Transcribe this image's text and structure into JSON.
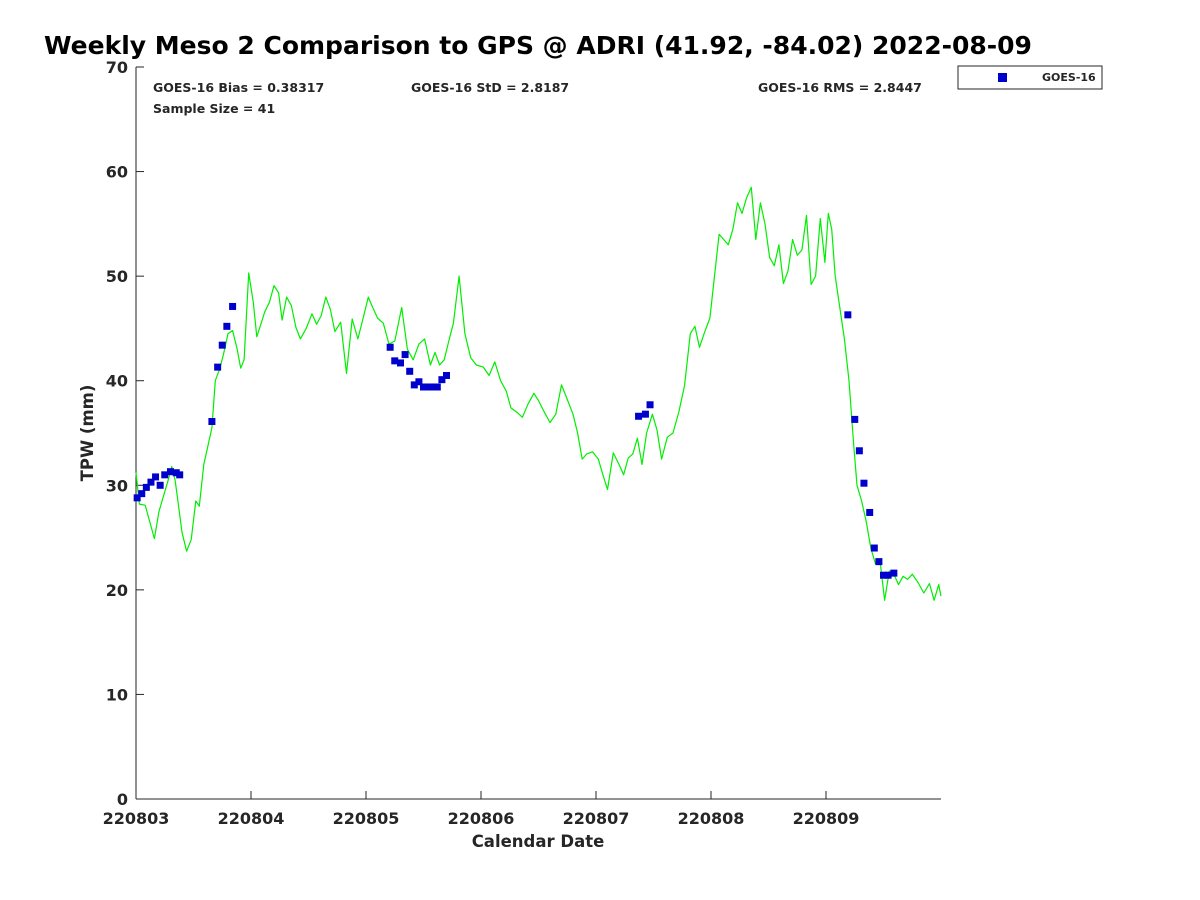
{
  "chart_data": {
    "type": "scatter",
    "title": "Weekly Meso 2 Comparison to GPS @ ADRI (41.92, -84.02) 2022-08-09",
    "xlabel": "Calendar Date",
    "ylabel": "TPW (mm)",
    "xlim": [
      0,
      7
    ],
    "ylim": [
      0,
      70
    ],
    "x_ticks": [
      {
        "label": "220803",
        "value": 0
      },
      {
        "label": "220804",
        "value": 1
      },
      {
        "label": "220805",
        "value": 2
      },
      {
        "label": "220806",
        "value": 3
      },
      {
        "label": "220807",
        "value": 4
      },
      {
        "label": "220808",
        "value": 5
      },
      {
        "label": "220809",
        "value": 6
      }
    ],
    "y_ticks": [
      "0",
      "10",
      "20",
      "30",
      "40",
      "50",
      "60",
      "70"
    ],
    "stats": {
      "bias": "GOES-16 Bias = 0.38317",
      "std": "GOES-16 StD = 2.8187",
      "rms": "GOES-16 RMS = 2.8447",
      "sample": "Sample Size = 41"
    },
    "legend": {
      "position": "top-right",
      "entries": [
        "GOES-16"
      ]
    },
    "colors": {
      "goes": "#0000cc",
      "gps": "#00ee00",
      "axis": "#262626"
    },
    "series": [
      {
        "name": "GOES-16",
        "marker": "square",
        "points": [
          [
            0.01,
            28.8
          ],
          [
            0.05,
            29.2
          ],
          [
            0.09,
            29.8
          ],
          [
            0.13,
            30.3
          ],
          [
            0.17,
            30.8
          ],
          [
            0.21,
            30.0
          ],
          [
            0.25,
            31.0
          ],
          [
            0.3,
            31.3
          ],
          [
            0.35,
            31.2
          ],
          [
            0.38,
            31.0
          ],
          [
            0.66,
            36.1
          ],
          [
            0.71,
            41.3
          ],
          [
            0.75,
            43.4
          ],
          [
            0.79,
            45.2
          ],
          [
            0.84,
            47.1
          ],
          [
            2.21,
            43.2
          ],
          [
            2.25,
            41.9
          ],
          [
            2.3,
            41.7
          ],
          [
            2.34,
            42.5
          ],
          [
            2.38,
            40.9
          ],
          [
            2.42,
            39.6
          ],
          [
            2.46,
            39.9
          ],
          [
            2.5,
            39.4
          ],
          [
            2.54,
            39.4
          ],
          [
            2.58,
            39.4
          ],
          [
            2.62,
            39.4
          ],
          [
            2.66,
            40.1
          ],
          [
            2.7,
            40.5
          ],
          [
            4.37,
            36.6
          ],
          [
            4.43,
            36.8
          ],
          [
            4.47,
            37.7
          ],
          [
            6.19,
            46.3
          ],
          [
            6.25,
            36.3
          ],
          [
            6.29,
            33.3
          ],
          [
            6.33,
            30.2
          ],
          [
            6.38,
            27.4
          ],
          [
            6.42,
            24.0
          ],
          [
            6.46,
            22.7
          ],
          [
            6.5,
            21.4
          ],
          [
            6.54,
            21.4
          ],
          [
            6.59,
            21.6
          ]
        ]
      },
      {
        "name": "GPS",
        "line": true,
        "points": [
          [
            0.0,
            31.2
          ],
          [
            0.03,
            28.2
          ],
          [
            0.08,
            28.1
          ],
          [
            0.12,
            26.5
          ],
          [
            0.16,
            24.9
          ],
          [
            0.2,
            27.5
          ],
          [
            0.24,
            29.0
          ],
          [
            0.28,
            30.5
          ],
          [
            0.31,
            31.8
          ],
          [
            0.34,
            30.5
          ],
          [
            0.37,
            28.0
          ],
          [
            0.4,
            25.5
          ],
          [
            0.44,
            23.7
          ],
          [
            0.48,
            24.8
          ],
          [
            0.52,
            28.5
          ],
          [
            0.55,
            28.0
          ],
          [
            0.59,
            32.0
          ],
          [
            0.62,
            33.5
          ],
          [
            0.66,
            35.5
          ],
          [
            0.69,
            40.0
          ],
          [
            0.73,
            41.2
          ],
          [
            0.76,
            42.5
          ],
          [
            0.8,
            44.5
          ],
          [
            0.84,
            44.8
          ],
          [
            0.88,
            43.0
          ],
          [
            0.91,
            41.2
          ],
          [
            0.94,
            42.0
          ],
          [
            0.98,
            50.3
          ],
          [
            1.02,
            47.5
          ],
          [
            1.05,
            44.2
          ],
          [
            1.08,
            45.2
          ],
          [
            1.12,
            46.6
          ],
          [
            1.16,
            47.5
          ],
          [
            1.2,
            49.1
          ],
          [
            1.24,
            48.4
          ],
          [
            1.27,
            45.8
          ],
          [
            1.31,
            48.0
          ],
          [
            1.35,
            47.2
          ],
          [
            1.39,
            45.1
          ],
          [
            1.43,
            44.0
          ],
          [
            1.48,
            45.0
          ],
          [
            1.53,
            46.4
          ],
          [
            1.57,
            45.4
          ],
          [
            1.61,
            46.2
          ],
          [
            1.65,
            48.0
          ],
          [
            1.69,
            46.8
          ],
          [
            1.73,
            44.7
          ],
          [
            1.78,
            45.6
          ],
          [
            1.83,
            40.7
          ],
          [
            1.88,
            45.9
          ],
          [
            1.93,
            44.0
          ],
          [
            1.98,
            46.2
          ],
          [
            2.02,
            48.0
          ],
          [
            2.05,
            47.2
          ],
          [
            2.1,
            46.0
          ],
          [
            2.15,
            45.5
          ],
          [
            2.2,
            43.5
          ],
          [
            2.25,
            43.8
          ],
          [
            2.31,
            47.0
          ],
          [
            2.36,
            43.0
          ],
          [
            2.41,
            42.0
          ],
          [
            2.46,
            43.5
          ],
          [
            2.51,
            44.0
          ],
          [
            2.56,
            41.5
          ],
          [
            2.6,
            42.7
          ],
          [
            2.64,
            41.5
          ],
          [
            2.68,
            42.0
          ],
          [
            2.72,
            43.8
          ],
          [
            2.76,
            45.5
          ],
          [
            2.81,
            50.0
          ],
          [
            2.86,
            44.5
          ],
          [
            2.91,
            42.2
          ],
          [
            2.96,
            41.5
          ],
          [
            3.02,
            41.3
          ],
          [
            3.07,
            40.5
          ],
          [
            3.12,
            41.8
          ],
          [
            3.17,
            40.0
          ],
          [
            3.22,
            39.0
          ],
          [
            3.26,
            37.4
          ],
          [
            3.31,
            37.0
          ],
          [
            3.36,
            36.5
          ],
          [
            3.41,
            37.8
          ],
          [
            3.46,
            38.8
          ],
          [
            3.5,
            38.1
          ],
          [
            3.55,
            37.0
          ],
          [
            3.6,
            36.0
          ],
          [
            3.65,
            36.8
          ],
          [
            3.7,
            39.6
          ],
          [
            3.75,
            38.2
          ],
          [
            3.8,
            36.8
          ],
          [
            3.84,
            35.0
          ],
          [
            3.88,
            32.5
          ],
          [
            3.92,
            33.0
          ],
          [
            3.97,
            33.2
          ],
          [
            4.02,
            32.5
          ],
          [
            4.06,
            31.0
          ],
          [
            4.1,
            29.6
          ],
          [
            4.15,
            33.1
          ],
          [
            4.2,
            32.0
          ],
          [
            4.24,
            31.0
          ],
          [
            4.28,
            32.6
          ],
          [
            4.32,
            33.0
          ],
          [
            4.36,
            34.5
          ],
          [
            4.4,
            32.0
          ],
          [
            4.44,
            35.0
          ],
          [
            4.49,
            36.8
          ],
          [
            4.53,
            35.3
          ],
          [
            4.57,
            32.5
          ],
          [
            4.62,
            34.6
          ],
          [
            4.67,
            35.0
          ],
          [
            4.72,
            37.0
          ],
          [
            4.77,
            39.5
          ],
          [
            4.82,
            44.5
          ],
          [
            4.86,
            45.2
          ],
          [
            4.9,
            43.2
          ],
          [
            4.94,
            44.5
          ],
          [
            4.99,
            46.0
          ],
          [
            5.03,
            50.0
          ],
          [
            5.07,
            54.0
          ],
          [
            5.11,
            53.5
          ],
          [
            5.15,
            53.0
          ],
          [
            5.19,
            54.5
          ],
          [
            5.23,
            57.0
          ],
          [
            5.27,
            56.0
          ],
          [
            5.31,
            57.5
          ],
          [
            5.35,
            58.5
          ],
          [
            5.39,
            53.5
          ],
          [
            5.43,
            57.0
          ],
          [
            5.47,
            55.0
          ],
          [
            5.51,
            51.8
          ],
          [
            5.55,
            51.0
          ],
          [
            5.59,
            53.0
          ],
          [
            5.63,
            49.3
          ],
          [
            5.67,
            50.5
          ],
          [
            5.71,
            53.5
          ],
          [
            5.75,
            52.0
          ],
          [
            5.79,
            52.5
          ],
          [
            5.83,
            55.8
          ],
          [
            5.87,
            49.2
          ],
          [
            5.91,
            50.0
          ],
          [
            5.95,
            55.5
          ],
          [
            5.99,
            51.3
          ],
          [
            6.02,
            56.0
          ],
          [
            6.05,
            54.5
          ],
          [
            6.08,
            50.0
          ],
          [
            6.12,
            47.0
          ],
          [
            6.16,
            44.0
          ],
          [
            6.2,
            40.0
          ],
          [
            6.24,
            34.0
          ],
          [
            6.27,
            30.0
          ],
          [
            6.31,
            28.5
          ],
          [
            6.35,
            26.5
          ],
          [
            6.39,
            24.0
          ],
          [
            6.43,
            22.5
          ],
          [
            6.47,
            22.8
          ],
          [
            6.51,
            19.0
          ],
          [
            6.55,
            21.8
          ],
          [
            6.59,
            21.5
          ],
          [
            6.63,
            20.5
          ],
          [
            6.67,
            21.3
          ],
          [
            6.71,
            21.0
          ],
          [
            6.75,
            21.5
          ],
          [
            6.8,
            20.7
          ],
          [
            6.85,
            19.7
          ],
          [
            6.9,
            20.6
          ],
          [
            6.94,
            19.0
          ],
          [
            6.98,
            20.5
          ],
          [
            7.0,
            19.4
          ]
        ]
      }
    ]
  }
}
